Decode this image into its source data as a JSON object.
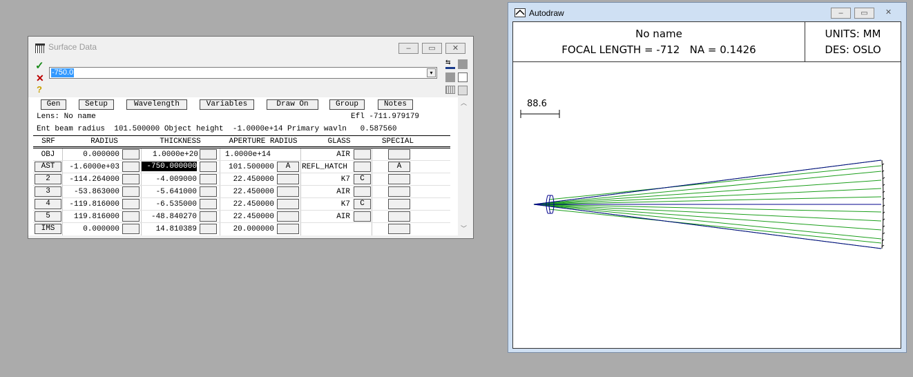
{
  "surface_window": {
    "title": "Surface Data",
    "input_value": "-750.0",
    "buttons": [
      "Gen",
      "Setup",
      "Wavelength",
      "Variables",
      "Draw On",
      "Group",
      "Notes"
    ],
    "lens_label": "Lens: No name",
    "efl_label": "Efl -711.979179",
    "info_line": "Ent beam radius  101.500000 Object height  -1.0000e+14 Primary wavln   0.587560",
    "headers": {
      "srf": "SRF",
      "radius": "RADIUS",
      "thickness": "THICKNESS",
      "aperture": "APERTURE RADIUS",
      "glass": "GLASS",
      "special": "SPECIAL"
    },
    "rows": [
      {
        "srf": "OBJ",
        "radius": "0.000000",
        "thickness": "1.0000e+20",
        "aperture": "1.0000e+14",
        "aperture_flag": "",
        "glass": "AIR",
        "glass_flag": "",
        "special": ""
      },
      {
        "srf": "AST",
        "radius": "-1.6000e+03",
        "thickness": "-750.000000",
        "aperture": "101.500000",
        "aperture_flag": "A",
        "glass": "REFL_HATCH",
        "glass_flag": "",
        "special": "A"
      },
      {
        "srf": "2",
        "radius": "-114.264000",
        "thickness": "-4.009000",
        "aperture": "22.450000",
        "aperture_flag": "",
        "glass": "K7",
        "glass_flag": "C",
        "special": ""
      },
      {
        "srf": "3",
        "radius": "-53.863000",
        "thickness": "-5.641000",
        "aperture": "22.450000",
        "aperture_flag": "",
        "glass": "AIR",
        "glass_flag": "",
        "special": ""
      },
      {
        "srf": "4",
        "radius": "-119.816000",
        "thickness": "-6.535000",
        "aperture": "22.450000",
        "aperture_flag": "",
        "glass": "K7",
        "glass_flag": "C",
        "special": ""
      },
      {
        "srf": "5",
        "radius": "119.816000",
        "thickness": "-48.840270",
        "aperture": "22.450000",
        "aperture_flag": "",
        "glass": "AIR",
        "glass_flag": "",
        "special": ""
      },
      {
        "srf": "IMS",
        "radius": "0.000000",
        "thickness": "14.810389",
        "aperture": "20.000000",
        "aperture_flag": "",
        "glass": "",
        "glass_flag": "",
        "special": ""
      }
    ]
  },
  "autodraw_window": {
    "title": "Autodraw",
    "lens_name": "No name",
    "focal_line": "FOCAL LENGTH = -712   NA = 0.1426",
    "units": "UNITS: MM",
    "des": "DES: OSLO",
    "scale_label": "88.6"
  },
  "colors": {
    "ray": "#1a9e1a",
    "outline": "#00008b",
    "selection": "#3399ff"
  }
}
